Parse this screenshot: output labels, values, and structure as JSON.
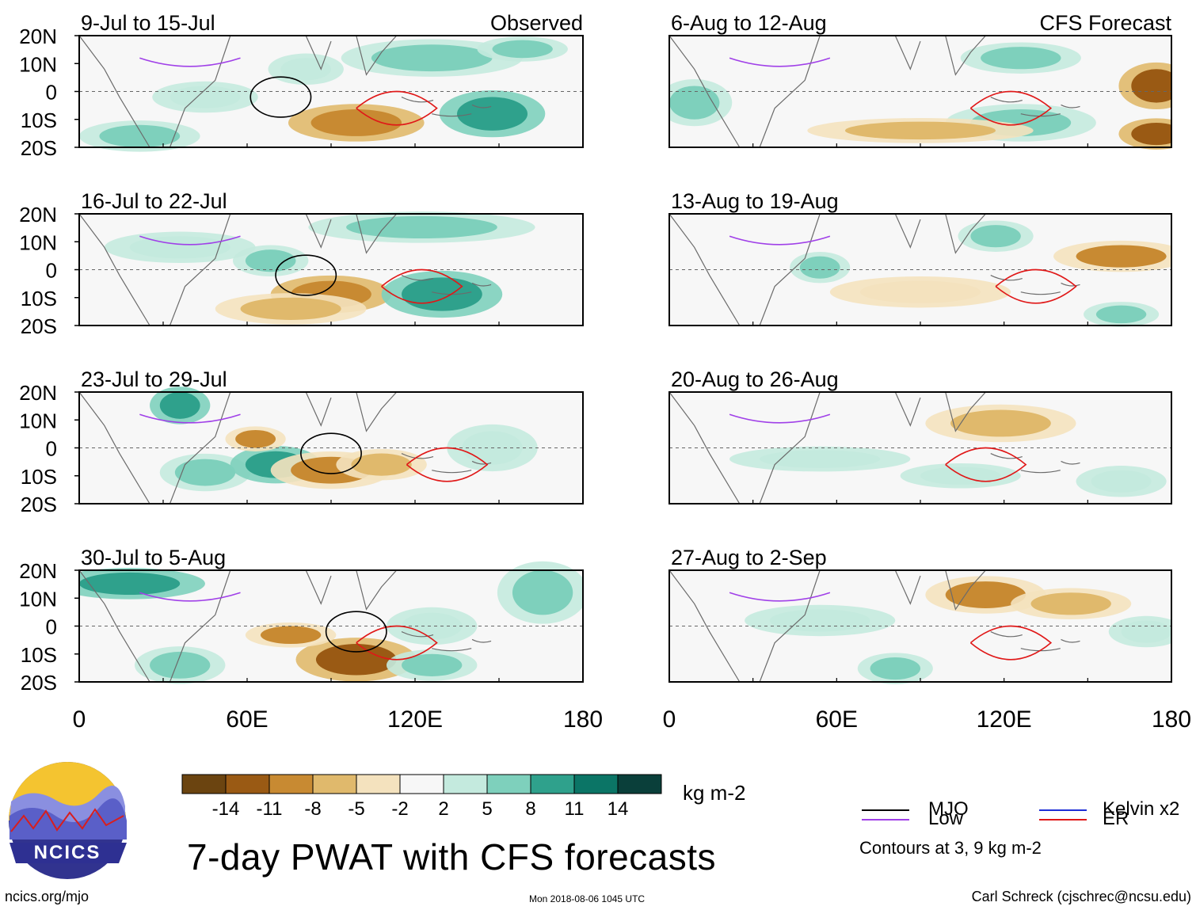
{
  "title": "7-day PWAT with CFS forecasts",
  "colors": {
    "mjo": "#000000",
    "kelvin": "#1f2fd6",
    "low": "#a040e8",
    "er": "#e01818",
    "dashed_equator": "#666666",
    "coast": "#6b6b6b"
  },
  "columns": {
    "left_header": "Observed",
    "right_header": "CFS Forecast"
  },
  "panels": [
    {
      "id": "p1",
      "period": "9-Jul to 15-Jul",
      "column": "observed"
    },
    {
      "id": "p2",
      "period": "16-Jul to 22-Jul",
      "column": "observed"
    },
    {
      "id": "p3",
      "period": "23-Jul to 29-Jul",
      "column": "observed"
    },
    {
      "id": "p4",
      "period": "30-Jul to 5-Aug",
      "column": "observed"
    },
    {
      "id": "p5",
      "period": "6-Aug to 12-Aug",
      "column": "forecast"
    },
    {
      "id": "p6",
      "period": "13-Aug to 19-Aug",
      "column": "forecast"
    },
    {
      "id": "p7",
      "period": "20-Aug to 26-Aug",
      "column": "forecast"
    },
    {
      "id": "p8",
      "period": "27-Aug to 2-Sep",
      "column": "forecast"
    }
  ],
  "axes": {
    "lat_ticks": [
      "20N",
      "10N",
      "0",
      "10S",
      "20S"
    ],
    "lon_ticks": [
      "0",
      "60E",
      "120E",
      "180"
    ]
  },
  "colorbar": {
    "ticks": [
      "-14",
      "-11",
      "-8",
      "-5",
      "-2",
      "2",
      "5",
      "8",
      "11",
      "14"
    ],
    "colors": [
      "#6b4410",
      "#9a5a14",
      "#c88a32",
      "#e0b96c",
      "#f4e2be",
      "#f7f7f7",
      "#c4eade",
      "#7ed0bc",
      "#2fa18c",
      "#0b7566",
      "#0a3f3a"
    ],
    "units": "kg m-2"
  },
  "legend": {
    "items": [
      {
        "label": "MJO",
        "color": "#000000"
      },
      {
        "label": "Kelvin x2",
        "color": "#1f2fd6"
      },
      {
        "label": "Low",
        "color": "#a040e8"
      },
      {
        "label": "ER",
        "color": "#e01818"
      }
    ],
    "note": "Contours at 3, 9 kg m-2"
  },
  "logo": {
    "text": "NCICS"
  },
  "footer": {
    "site": "ncics.org/mjo",
    "timestamp": "Mon 2018-08-06 1045 UTC",
    "credit": "Carl Schreck (cjschrec@ncsu.edu)"
  }
}
